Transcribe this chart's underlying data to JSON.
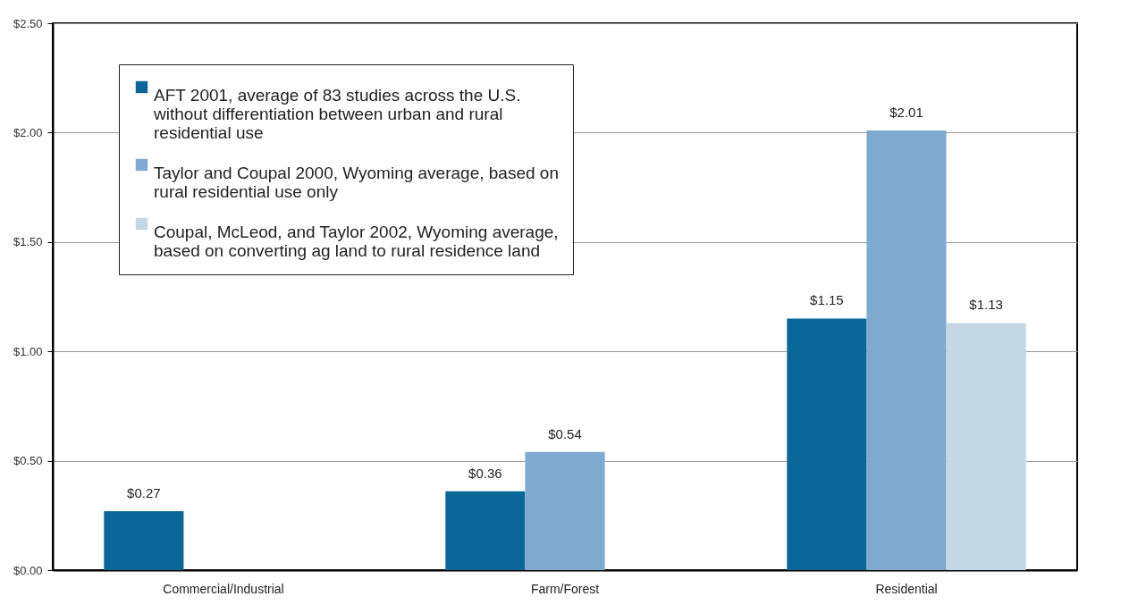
{
  "chart_data": {
    "type": "bar",
    "categories": [
      "Commercial/Industrial",
      "Farm/Forest",
      "Residential"
    ],
    "series": [
      {
        "name": "AFT 2001, average of 83 studies across the U.S. without differentiation between urban and rural residential use",
        "color": "#0b6797",
        "values": [
          0.27,
          0.36,
          1.15
        ],
        "value_labels": [
          "$0.27",
          "$0.36",
          "$1.15"
        ]
      },
      {
        "name": "Taylor and Coupal 2000, Wyoming average, based on rural residential use only",
        "color": "#7eaad0",
        "values": [
          null,
          0.54,
          2.01
        ],
        "value_labels": [
          null,
          "$0.54",
          "$2.01"
        ]
      },
      {
        "name": "Coupal, McLeod, and Taylor 2002, Wyoming average, based on converting ag land to rural residence land",
        "color": "#c4d7e4",
        "values": [
          null,
          null,
          1.13
        ],
        "value_labels": [
          null,
          null,
          "$1.13"
        ]
      }
    ],
    "ylim": [
      0,
      2.5
    ],
    "yticks": [
      {
        "value": 0,
        "label": "$0.00"
      },
      {
        "value": 0.5,
        "label": "$0.50"
      },
      {
        "value": 1,
        "label": "$1.00"
      },
      {
        "value": 1.5,
        "label": "$1.50"
      },
      {
        "value": 2,
        "label": "$2.00"
      },
      {
        "value": 2.5,
        "label": "$2.50"
      }
    ],
    "grid": "y",
    "legend": "top left"
  }
}
